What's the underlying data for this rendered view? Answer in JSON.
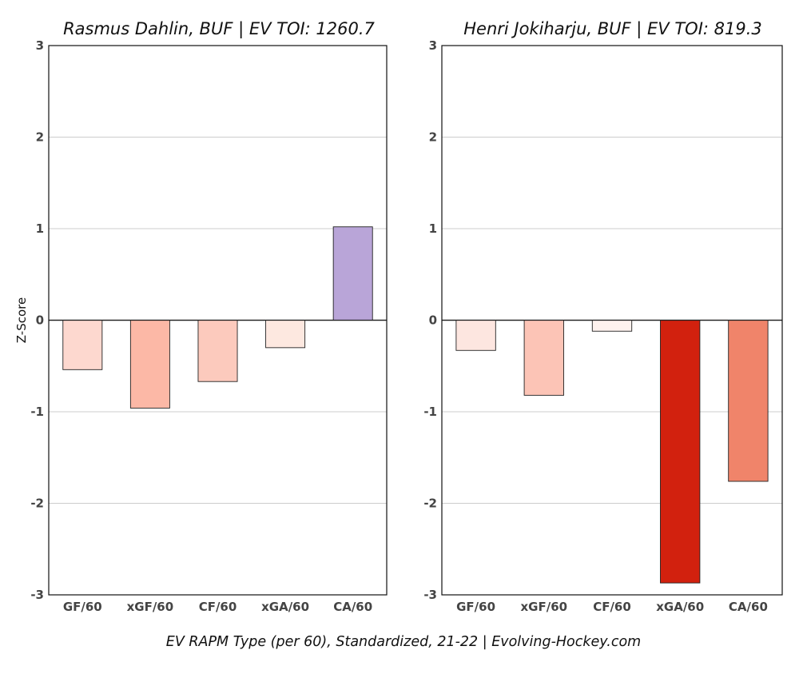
{
  "caption": "EV RAPM Type (per 60), Standardized, 21-22    |    Evolving-Hockey.com",
  "chart_data": [
    {
      "type": "bar",
      "title": "Rasmus Dahlin, BUF  |  EV TOI: 1260.7",
      "ylabel": "Z-Score",
      "xlabel": "",
      "ylim": [
        -3,
        3
      ],
      "yticks": [
        3,
        2,
        1,
        0,
        -1,
        -2,
        -3
      ],
      "grid": true,
      "categories": [
        "GF/60",
        "xGF/60",
        "CF/60",
        "xGA/60",
        "CA/60"
      ],
      "values": [
        -0.54,
        -0.96,
        -0.67,
        -0.3,
        1.02
      ],
      "colors": [
        "#fdd8cf",
        "#fcb8a6",
        "#fccabd",
        "#fde8e0",
        "#b9a5d8"
      ]
    },
    {
      "type": "bar",
      "title": "Henri Jokiharju, BUF  |  EV TOI: 819.3",
      "ylabel": "",
      "xlabel": "",
      "ylim": [
        -3,
        3
      ],
      "yticks": [
        3,
        2,
        1,
        0,
        -1,
        -2,
        -3
      ],
      "grid": true,
      "categories": [
        "GF/60",
        "xGF/60",
        "CF/60",
        "xGA/60",
        "CA/60"
      ],
      "values": [
        -0.33,
        -0.82,
        -0.12,
        -2.87,
        -1.76
      ],
      "colors": [
        "#fde6e0",
        "#fcc4b6",
        "#fef2ee",
        "#d2210e",
        "#f0846a"
      ]
    }
  ]
}
